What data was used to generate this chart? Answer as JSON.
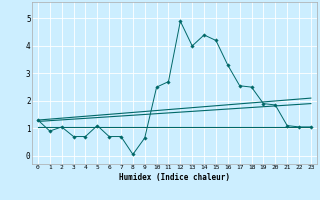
{
  "title": "",
  "xlabel": "Humidex (Indice chaleur)",
  "xlim": [
    -0.5,
    23.5
  ],
  "ylim": [
    -0.3,
    5.6
  ],
  "xticks": [
    0,
    1,
    2,
    3,
    4,
    5,
    6,
    7,
    8,
    9,
    10,
    11,
    12,
    13,
    14,
    15,
    16,
    17,
    18,
    19,
    20,
    21,
    22,
    23
  ],
  "yticks": [
    0,
    1,
    2,
    3,
    4,
    5
  ],
  "bg_color": "#cceeff",
  "line_color": "#006868",
  "grid_color": "#ffffff",
  "series1_x": [
    0,
    1,
    2,
    3,
    4,
    5,
    6,
    7,
    8,
    9,
    10,
    11,
    12,
    13,
    14,
    15,
    16,
    17,
    18,
    19,
    20,
    21,
    22,
    23
  ],
  "series1_y": [
    1.3,
    0.9,
    1.05,
    0.7,
    0.7,
    1.1,
    0.7,
    0.7,
    0.05,
    0.65,
    2.5,
    2.7,
    4.9,
    4.0,
    4.4,
    4.2,
    3.3,
    2.55,
    2.5,
    1.9,
    1.85,
    1.1,
    1.05,
    1.05
  ],
  "series2_x": [
    0,
    23
  ],
  "series2_y": [
    1.25,
    1.9
  ],
  "series3_x": [
    0,
    23
  ],
  "series3_y": [
    1.3,
    2.1
  ],
  "series4_x": [
    0,
    23
  ],
  "series4_y": [
    1.05,
    1.05
  ]
}
